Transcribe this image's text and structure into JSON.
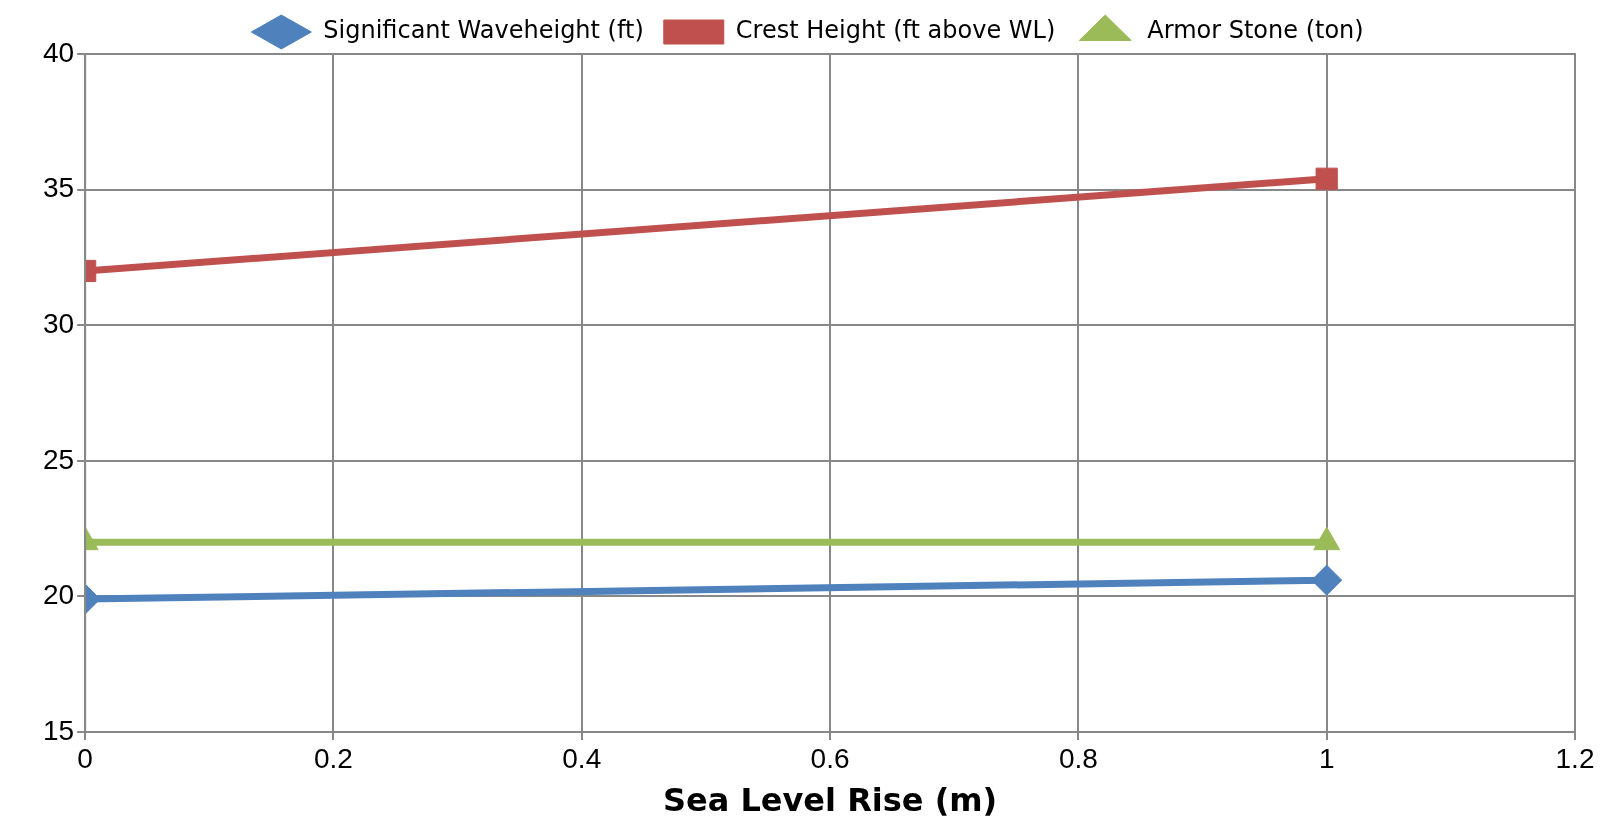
{
  "chart_data": {
    "type": "line",
    "xlabel": "Sea Level Rise (m)",
    "x": [
      0,
      1
    ],
    "series": [
      {
        "name": "Significant Waveheight (ft)",
        "color": "#4f81bd",
        "values": [
          19.9,
          20.6
        ],
        "marker": "diamond"
      },
      {
        "name": "Crest Height (ft above WL)",
        "color": "#c0504d",
        "values": [
          32,
          35.4
        ],
        "marker": "square"
      },
      {
        "name": "Armor Stone (ton)",
        "color": "#9bbb59",
        "values": [
          22,
          22
        ],
        "marker": "triangle"
      }
    ],
    "xlim": [
      0,
      1.2
    ],
    "xticks": [
      0,
      0.2,
      0.4,
      0.6,
      0.8,
      1,
      1.2
    ],
    "ylim": [
      15,
      40
    ],
    "yticks": [
      15,
      20,
      25,
      30,
      35,
      40
    ],
    "grid": true,
    "legend": "top",
    "line_style": "solid"
  }
}
